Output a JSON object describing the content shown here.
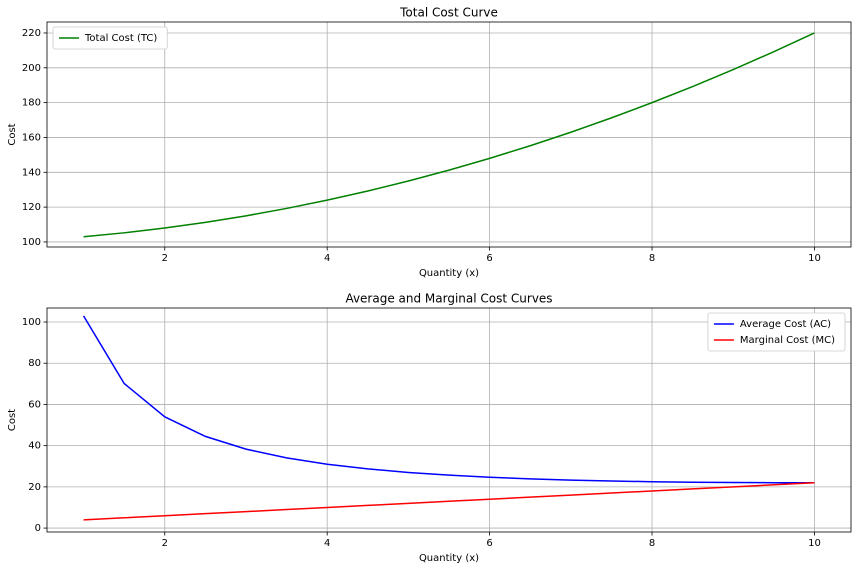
{
  "chart_data": [
    {
      "type": "line",
      "title": "Total Cost Curve",
      "xlabel": "Quantity (x)",
      "ylabel": "Cost",
      "x": [
        1,
        1.5,
        2,
        2.5,
        3,
        3.5,
        4,
        4.5,
        5,
        5.5,
        6,
        6.5,
        7,
        7.5,
        8,
        8.5,
        9,
        9.5,
        10
      ],
      "series": [
        {
          "name": "Total Cost (TC)",
          "color": "#008000",
          "values": [
            103,
            105.25,
            108,
            111.25,
            115,
            119.25,
            124,
            129.25,
            135,
            141.25,
            148,
            155.25,
            163,
            171.25,
            180,
            189.25,
            199,
            209.25,
            220
          ]
        }
      ],
      "xlim": [
        0.55,
        10.45
      ],
      "xticks": [
        2,
        4,
        6,
        8,
        10
      ],
      "ylim": [
        97.1,
        226.3
      ],
      "yticks": [
        100,
        120,
        140,
        160,
        180,
        200,
        220
      ],
      "grid": true,
      "legend": "upper-left"
    },
    {
      "type": "line",
      "title": "Average and Marginal Cost Curves",
      "xlabel": "Quantity (x)",
      "ylabel": "Cost",
      "x": [
        1,
        1.5,
        2,
        2.5,
        3,
        3.5,
        4,
        4.5,
        5,
        5.5,
        6,
        6.5,
        7,
        7.5,
        8,
        8.5,
        9,
        9.5,
        10
      ],
      "series": [
        {
          "name": "Average Cost (AC)",
          "color": "#0000ff",
          "values": [
            103,
            70.17,
            54,
            44.5,
            38.33,
            34.07,
            31,
            28.72,
            27,
            25.68,
            24.67,
            23.88,
            23.29,
            22.83,
            22.5,
            22.26,
            22.11,
            22.03,
            22
          ]
        },
        {
          "name": "Marginal Cost (MC)",
          "color": "#ff0000",
          "values": [
            4,
            5,
            6,
            7,
            8,
            9,
            10,
            11,
            12,
            13,
            14,
            15,
            16,
            17,
            18,
            19,
            20,
            21,
            22
          ]
        }
      ],
      "xlim": [
        0.55,
        10.45
      ],
      "xticks": [
        2,
        4,
        6,
        8,
        10
      ],
      "ylim": [
        -1.9,
        106.8
      ],
      "yticks": [
        0,
        20,
        40,
        60,
        80,
        100
      ],
      "grid": true,
      "legend": "upper-right"
    }
  ]
}
